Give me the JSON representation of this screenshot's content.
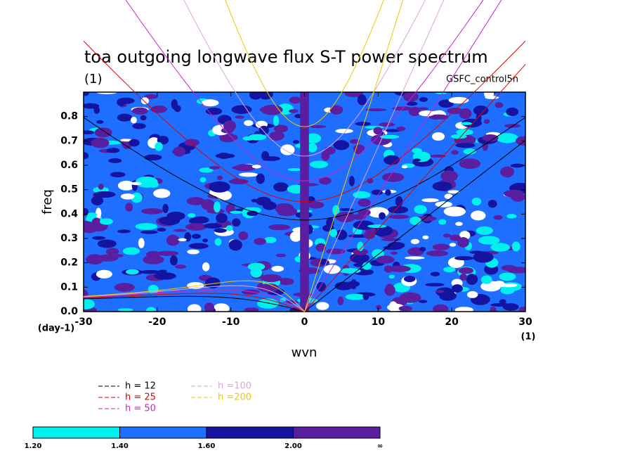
{
  "chart_data": {
    "type": "spectrum",
    "title": "toa outgoing longwave flux S-T power spectrum",
    "subtitle": "(1)",
    "annotation": "GSFC_control5n",
    "x_label": "wvn",
    "x_unit": "(1)",
    "y_label": "freq",
    "y_unit": "(day-1)",
    "xlim": [
      -30,
      30
    ],
    "xticks": [
      -30,
      -20,
      -10,
      0,
      10,
      20,
      30
    ],
    "ylim": [
      0,
      0.9
    ],
    "yticks": [
      {
        "value": 0,
        "label": "0.0"
      },
      {
        "value": 0.1,
        "label": "0.1"
      },
      {
        "value": 0.2,
        "label": "0.2"
      },
      {
        "value": 0.3,
        "label": "0.3"
      },
      {
        "value": 0.4,
        "label": "0.4"
      },
      {
        "value": 0.5,
        "label": "0.5"
      },
      {
        "value": 0.6,
        "label": "0.6"
      },
      {
        "value": 0.7,
        "label": "0.7"
      },
      {
        "value": 0.8,
        "label": "0.8"
      }
    ],
    "series": [
      {
        "name": "h = 12",
        "h": 12,
        "color": "#000000"
      },
      {
        "name": "h = 25",
        "h": 25,
        "color": "#e00000"
      },
      {
        "name": "h = 50",
        "h": 50,
        "color": "#d020c8"
      },
      {
        "name": "h =100",
        "h": 100,
        "color": "#e0a0e0"
      },
      {
        "name": "h =200",
        "h": 200,
        "color": "#f0c800"
      }
    ],
    "colorbar": {
      "labels": [
        "1.20",
        "1.40",
        "1.60",
        "2.00",
        "∞"
      ],
      "colors": [
        "#00f0f0",
        "#1e6eff",
        "#1414a0",
        "#5a1ea0"
      ]
    }
  }
}
